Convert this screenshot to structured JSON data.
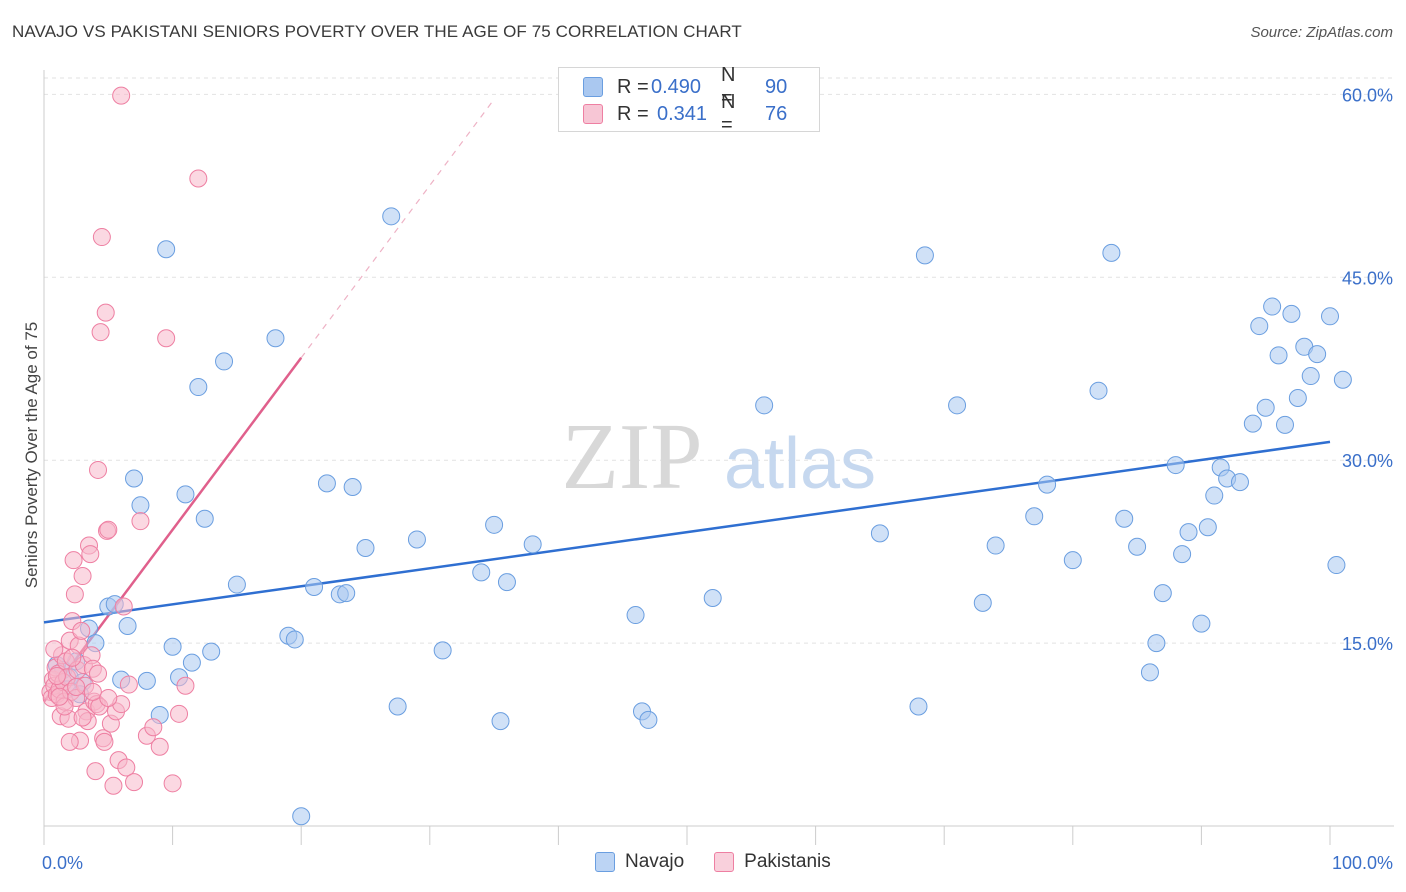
{
  "header": {
    "title": "NAVAJO VS PAKISTANI SENIORS POVERTY OVER THE AGE OF 75 CORRELATION CHART",
    "source": "Source: ZipAtlas.com"
  },
  "watermark": {
    "zip": "ZIP",
    "atlas": "atlas"
  },
  "legend": {
    "rows": [
      {
        "r_label": "R =",
        "r_value": "0.490",
        "n_label": "N =",
        "n_value": "90"
      },
      {
        "r_label": "R =",
        "r_value": "0.341",
        "n_label": "N =",
        "n_value": "76"
      }
    ]
  },
  "bottom_legend": {
    "navajo": "Navajo",
    "pakistanis": "Pakistanis"
  },
  "colors": {
    "navajo_fill": "#aac8f0",
    "navajo_stroke": "#6a9ee0",
    "navajo_line": "#2f6fd1",
    "pak_fill": "#f7b8cb",
    "pak_stroke": "#ee7fa2",
    "pak_line": "#e0608c",
    "tick_label": "#3a6fc9",
    "grid": "#e2e2e2"
  },
  "chart_data": {
    "type": "scatter",
    "title": "NAVAJO VS PAKISTANI SENIORS POVERTY OVER THE AGE OF 75 CORRELATION CHART",
    "xlabel": "",
    "ylabel": "Seniors Poverty Over the Age of 75",
    "xlim": [
      0,
      100
    ],
    "ylim": [
      0,
      62
    ],
    "x_tick_labels": [
      "0.0%",
      "100.0%"
    ],
    "y_ticks": [
      15,
      30,
      45,
      60
    ],
    "y_tick_labels": [
      "15.0%",
      "30.0%",
      "45.0%",
      "60.0%"
    ],
    "series": [
      {
        "name": "Navajo",
        "R": 0.49,
        "N": 90,
        "trend": {
          "x0": 0,
          "y0": 16.7,
          "x1": 100,
          "y1": 31.5
        },
        "points": [
          [
            1,
            13.2
          ],
          [
            1.5,
            12.8
          ],
          [
            2,
            12.2
          ],
          [
            2.5,
            13.5
          ],
          [
            3,
            11.8
          ],
          [
            3.5,
            16.2
          ],
          [
            4,
            15.0
          ],
          [
            5,
            18.0
          ],
          [
            5.5,
            18.2
          ],
          [
            6,
            12.0
          ],
          [
            6.5,
            16.4
          ],
          [
            7,
            28.5
          ],
          [
            7.5,
            26.3
          ],
          [
            8,
            11.9
          ],
          [
            9,
            9.1
          ],
          [
            9.5,
            47.3
          ],
          [
            10,
            14.7
          ],
          [
            10.5,
            12.2
          ],
          [
            11,
            27.2
          ],
          [
            11.5,
            13.4
          ],
          [
            12,
            36.0
          ],
          [
            12.5,
            25.2
          ],
          [
            13,
            14.3
          ],
          [
            14,
            38.1
          ],
          [
            15,
            19.8
          ],
          [
            18,
            40.0
          ],
          [
            19,
            15.6
          ],
          [
            19.5,
            15.3
          ],
          [
            20,
            0.8
          ],
          [
            21,
            19.6
          ],
          [
            22,
            28.1
          ],
          [
            23,
            19.0
          ],
          [
            23.5,
            19.1
          ],
          [
            24,
            27.8
          ],
          [
            25,
            22.8
          ],
          [
            27,
            50.0
          ],
          [
            27.5,
            9.8
          ],
          [
            29,
            23.5
          ],
          [
            31,
            14.4
          ],
          [
            34,
            20.8
          ],
          [
            35,
            24.7
          ],
          [
            35.5,
            8.6
          ],
          [
            36,
            20.0
          ],
          [
            38,
            23.1
          ],
          [
            46,
            17.3
          ],
          [
            46.5,
            9.4
          ],
          [
            47,
            8.7
          ],
          [
            52,
            18.7
          ],
          [
            56,
            34.5
          ],
          [
            65,
            24.0
          ],
          [
            68,
            9.8
          ],
          [
            68.5,
            46.8
          ],
          [
            71,
            34.5
          ],
          [
            73,
            18.3
          ],
          [
            74,
            23.0
          ],
          [
            77,
            25.4
          ],
          [
            78,
            28.0
          ],
          [
            80,
            21.8
          ],
          [
            82,
            35.7
          ],
          [
            83,
            47.0
          ],
          [
            84,
            25.2
          ],
          [
            85,
            22.9
          ],
          [
            86,
            12.6
          ],
          [
            86.5,
            15.0
          ],
          [
            87,
            19.1
          ],
          [
            88,
            29.6
          ],
          [
            88.5,
            22.3
          ],
          [
            89,
            24.1
          ],
          [
            90,
            16.6
          ],
          [
            90.5,
            24.5
          ],
          [
            91,
            27.1
          ],
          [
            91.5,
            29.4
          ],
          [
            92,
            28.5
          ],
          [
            93,
            28.2
          ],
          [
            94,
            33.0
          ],
          [
            94.5,
            41.0
          ],
          [
            95,
            34.3
          ],
          [
            95.5,
            42.6
          ],
          [
            96,
            38.6
          ],
          [
            96.5,
            32.9
          ],
          [
            97,
            42.0
          ],
          [
            97.5,
            35.1
          ],
          [
            98,
            39.3
          ],
          [
            98.5,
            36.9
          ],
          [
            99,
            38.7
          ],
          [
            100,
            41.8
          ],
          [
            100.5,
            21.4
          ],
          [
            101,
            36.6
          ],
          [
            1.8,
            11.2
          ],
          [
            2.8,
            10.8
          ]
        ]
      },
      {
        "name": "Pakistanis",
        "R": 0.341,
        "N": 76,
        "trend": {
          "x0": 0,
          "y0": 10.2,
          "x1": 20,
          "y1": 38.4,
          "dashed_to_x": 35,
          "dashed_to_y": 59.6
        },
        "points": [
          [
            0.5,
            11.0
          ],
          [
            0.6,
            10.5
          ],
          [
            0.7,
            12.0
          ],
          [
            0.8,
            11.5
          ],
          [
            0.9,
            13.0
          ],
          [
            1.0,
            10.8
          ],
          [
            1.1,
            12.5
          ],
          [
            1.2,
            11.2
          ],
          [
            1.3,
            9.0
          ],
          [
            1.4,
            14.0
          ],
          [
            1.5,
            11.8
          ],
          [
            1.6,
            10.2
          ],
          [
            1.7,
            13.5
          ],
          [
            1.8,
            12.2
          ],
          [
            1.9,
            8.8
          ],
          [
            2.0,
            15.2
          ],
          [
            2.1,
            11.0
          ],
          [
            2.2,
            16.8
          ],
          [
            2.3,
            21.8
          ],
          [
            2.4,
            19.0
          ],
          [
            2.5,
            10.5
          ],
          [
            2.6,
            12.8
          ],
          [
            2.7,
            14.8
          ],
          [
            2.8,
            7.0
          ],
          [
            2.9,
            16.0
          ],
          [
            3.0,
            20.5
          ],
          [
            3.1,
            13.2
          ],
          [
            3.2,
            11.5
          ],
          [
            3.3,
            9.4
          ],
          [
            3.4,
            8.6
          ],
          [
            3.5,
            23.0
          ],
          [
            3.6,
            22.3
          ],
          [
            3.7,
            14.0
          ],
          [
            3.8,
            12.9
          ],
          [
            3.9,
            10.2
          ],
          [
            4.0,
            4.5
          ],
          [
            4.1,
            10.0
          ],
          [
            4.2,
            29.2
          ],
          [
            4.3,
            9.8
          ],
          [
            4.4,
            40.5
          ],
          [
            4.5,
            48.3
          ],
          [
            4.6,
            7.2
          ],
          [
            4.7,
            6.9
          ],
          [
            4.8,
            42.1
          ],
          [
            4.9,
            24.2
          ],
          [
            5.0,
            24.3
          ],
          [
            5.2,
            8.4
          ],
          [
            5.4,
            3.3
          ],
          [
            5.6,
            9.4
          ],
          [
            5.8,
            5.4
          ],
          [
            6.0,
            10.0
          ],
          [
            6.2,
            18.0
          ],
          [
            6.4,
            4.8
          ],
          [
            6.6,
            11.6
          ],
          [
            7.0,
            3.6
          ],
          [
            7.5,
            25.0
          ],
          [
            8.0,
            7.4
          ],
          [
            8.5,
            8.1
          ],
          [
            9.0,
            6.5
          ],
          [
            9.5,
            40.0
          ],
          [
            10.0,
            3.5
          ],
          [
            10.5,
            9.2
          ],
          [
            11.0,
            11.5
          ],
          [
            12.0,
            53.1
          ],
          [
            6.0,
            59.9
          ],
          [
            2.2,
            13.8
          ],
          [
            1.6,
            9.8
          ],
          [
            3.0,
            8.9
          ],
          [
            2.5,
            11.4
          ],
          [
            1.2,
            10.6
          ],
          [
            4.2,
            12.5
          ],
          [
            3.8,
            11.0
          ],
          [
            2.0,
            6.9
          ],
          [
            1.0,
            12.3
          ],
          [
            0.8,
            14.5
          ],
          [
            5.0,
            10.5
          ]
        ]
      }
    ]
  }
}
